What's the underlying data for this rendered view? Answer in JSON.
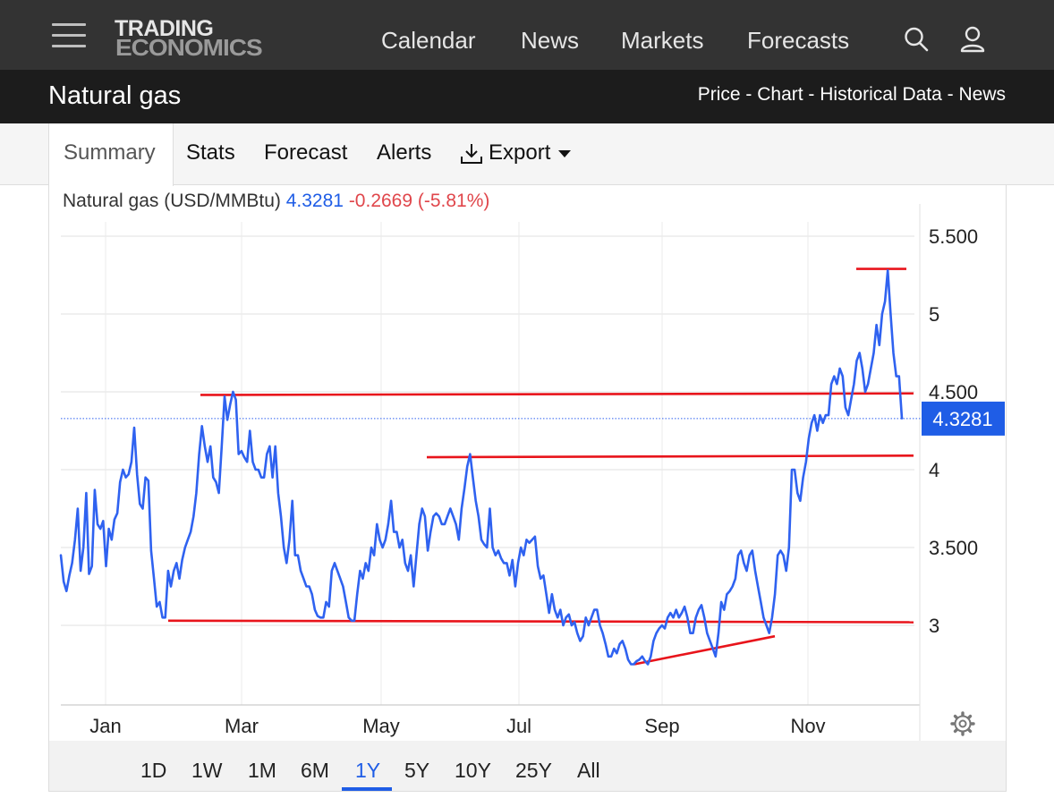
{
  "header": {
    "logo_line1": "TRADING",
    "logo_line2": "ECONOMICS",
    "nav": [
      "Calendar",
      "News",
      "Markets",
      "Forecasts"
    ]
  },
  "titlebar": {
    "title": "Natural gas",
    "links": [
      "Price",
      "Chart",
      "Historical Data",
      "News"
    ],
    "separator": " - "
  },
  "tabs": {
    "items": [
      "Summary",
      "Stats",
      "Forecast",
      "Alerts",
      "Export"
    ],
    "active": "Summary"
  },
  "quote": {
    "name": "Natural gas (USD/MMBtu)",
    "price": "4.3281",
    "change": "-0.2669 (-5.81%)",
    "price_tag": "4.3281"
  },
  "colors": {
    "series": "#2f62f0",
    "trendline": "#e8141b",
    "negative": "#e0464b",
    "accent": "#1f5de6"
  },
  "range": {
    "buttons": [
      "1D",
      "1W",
      "1M",
      "6M",
      "1Y",
      "5Y",
      "10Y",
      "25Y",
      "All"
    ],
    "active": "1Y"
  },
  "chart_data": {
    "type": "line",
    "title": "Natural gas (USD/MMBtu)",
    "xlabel": "",
    "ylabel": "",
    "x_tick_labels": [
      "Jan",
      "Mar",
      "May",
      "Jul",
      "Sep",
      "Nov"
    ],
    "y_tick_labels": [
      "3",
      "3.500",
      "4",
      "4.500",
      "5",
      "5.500"
    ],
    "y_ticks": [
      3,
      3.5,
      4,
      4.5,
      5,
      5.5
    ],
    "ylim": [
      2.5,
      5.65
    ],
    "y_axis_position": "right",
    "grid": true,
    "last_value": 4.3281,
    "series": [
      {
        "values": [
          3.45,
          3.28,
          3.22,
          3.32,
          3.4,
          3.55,
          3.75,
          3.35,
          3.5,
          3.85,
          3.33,
          3.38,
          3.87,
          3.65,
          3.62,
          3.67,
          3.38,
          3.62,
          3.55,
          3.68,
          3.72,
          3.92,
          4.0,
          3.95,
          3.97,
          4.05,
          4.27,
          3.97,
          3.78,
          3.75,
          3.95,
          3.93,
          3.48,
          3.3,
          3.12,
          3.15,
          3.05,
          3.05,
          3.35,
          3.25,
          3.35,
          3.4,
          3.3,
          3.42,
          3.5,
          3.55,
          3.6,
          3.7,
          3.85,
          4.1,
          4.28,
          4.15,
          4.05,
          4.15,
          3.95,
          3.92,
          3.85,
          4.15,
          4.47,
          4.32,
          4.42,
          4.5,
          4.45,
          4.1,
          4.12,
          4.08,
          4.05,
          4.25,
          4.05,
          4.0,
          4.0,
          3.95,
          3.95,
          4.1,
          4.15,
          3.95,
          4.15,
          3.85,
          3.7,
          3.5,
          3.4,
          3.55,
          3.8,
          3.45,
          3.45,
          3.35,
          3.3,
          3.25,
          3.25,
          3.2,
          3.1,
          3.06,
          3.05,
          3.05,
          3.15,
          3.12,
          3.35,
          3.4,
          3.35,
          3.3,
          3.25,
          3.15,
          3.05,
          3.03,
          3.03,
          3.2,
          3.35,
          3.3,
          3.4,
          3.35,
          3.5,
          3.45,
          3.65,
          3.55,
          3.5,
          3.55,
          3.65,
          3.8,
          3.6,
          3.6,
          3.5,
          3.55,
          3.4,
          3.35,
          3.45,
          3.25,
          3.45,
          3.65,
          3.75,
          3.7,
          3.48,
          3.6,
          3.7,
          3.72,
          3.7,
          3.65,
          3.65,
          3.7,
          3.75,
          3.7,
          3.65,
          3.55,
          3.75,
          3.88,
          4.02,
          4.1,
          3.95,
          3.8,
          3.7,
          3.55,
          3.52,
          3.5,
          3.75,
          3.5,
          3.45,
          3.48,
          3.43,
          3.4,
          3.4,
          3.32,
          3.42,
          3.25,
          3.4,
          3.5,
          3.45,
          3.55,
          3.53,
          3.55,
          3.57,
          3.38,
          3.3,
          3.32,
          3.2,
          3.08,
          3.2,
          3.1,
          3.05,
          3.1,
          3.0,
          3.05,
          3.07,
          3.0,
          3.02,
          2.95,
          2.9,
          2.93,
          3.05,
          3.0,
          3.05,
          3.1,
          3.1,
          3.0,
          2.95,
          2.88,
          2.8,
          2.8,
          2.85,
          2.82,
          2.88,
          2.9,
          2.85,
          2.78,
          2.75,
          2.75,
          2.77,
          2.78,
          2.8,
          2.77,
          2.75,
          2.8,
          2.9,
          2.95,
          2.98,
          3.0,
          2.98,
          3.05,
          3.08,
          3.05,
          3.1,
          3.05,
          3.08,
          3.12,
          3.05,
          2.95,
          2.95,
          3.05,
          3.1,
          3.13,
          3.05,
          2.95,
          2.9,
          2.85,
          2.8,
          2.95,
          3.15,
          3.1,
          3.2,
          3.22,
          3.25,
          3.3,
          3.45,
          3.48,
          3.4,
          3.35,
          3.45,
          3.48,
          3.35,
          3.25,
          3.15,
          3.05,
          3.0,
          2.95,
          3.05,
          3.2,
          3.45,
          3.48,
          3.45,
          3.35,
          3.5,
          4.0,
          4.0,
          3.85,
          3.8,
          3.95,
          4.05,
          4.2,
          4.3,
          4.35,
          4.25,
          4.35,
          4.3,
          4.35,
          4.35,
          4.55,
          4.6,
          4.55,
          4.65,
          4.6,
          4.4,
          4.35,
          4.45,
          4.55,
          4.7,
          4.75,
          4.65,
          4.5,
          4.55,
          4.65,
          4.75,
          4.93,
          4.8,
          5.0,
          5.08,
          5.28,
          5.0,
          4.75,
          4.6,
          4.6,
          4.33
        ]
      }
    ],
    "trendlines": [
      {
        "from": [
          "mid Jan",
          3.03
        ],
        "to": [
          "end Dec",
          3.02
        ]
      },
      {
        "from": [
          "mid Feb",
          4.48
        ],
        "to": [
          "end Dec",
          4.49
        ]
      },
      {
        "from": [
          "mid May",
          4.08
        ],
        "to": [
          "end Dec",
          4.09
        ]
      },
      {
        "from": [
          "late Aug",
          2.75
        ],
        "to": [
          "mid Oct",
          2.93
        ]
      },
      {
        "from": [
          "early Dec",
          5.29
        ],
        "to": [
          "mid Dec",
          5.29
        ]
      }
    ]
  }
}
